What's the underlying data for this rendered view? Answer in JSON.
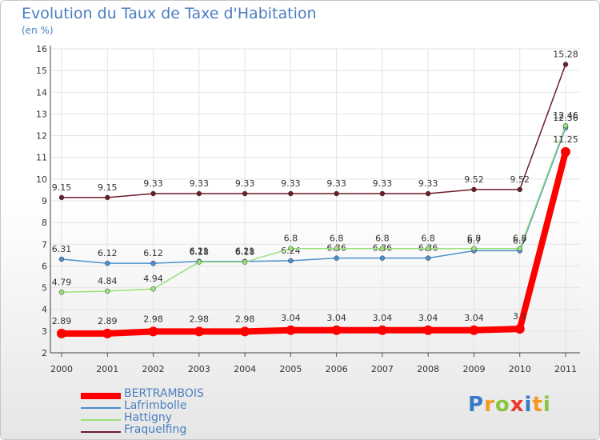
{
  "header": {
    "title": "Evolution du Taux de Taxe d'Habitation",
    "unit": "(en %)"
  },
  "logo": {
    "text": "Proxiti"
  },
  "chart_data": {
    "type": "line",
    "x": [
      "2000",
      "2001",
      "2002",
      "2003",
      "2004",
      "2005",
      "2006",
      "2007",
      "2008",
      "2009",
      "2010",
      "2011"
    ],
    "ylim": [
      2,
      16
    ],
    "yticks": [
      2,
      3,
      4,
      5,
      6,
      7,
      8,
      9,
      10,
      11,
      12,
      13,
      14,
      15,
      16
    ],
    "grid": true,
    "legend_position": "bottom-left",
    "series": [
      {
        "name": "Fraquelfing",
        "color": "#6b1d2a",
        "width": 1.5,
        "values": [
          9.15,
          9.15,
          9.33,
          9.33,
          9.33,
          9.33,
          9.33,
          9.33,
          9.33,
          9.52,
          9.52,
          15.28
        ],
        "labels": [
          "9.15",
          "9.15",
          "9.33",
          "9.33",
          "9.33",
          "9.33",
          "9.33",
          "9.33",
          "9.33",
          "9.52",
          "9.52",
          "15.28"
        ]
      },
      {
        "name": "Lafrimbolle",
        "color": "#4b8fcf",
        "width": 1.5,
        "values": [
          6.31,
          6.12,
          6.12,
          6.21,
          6.21,
          6.24,
          6.36,
          6.36,
          6.36,
          6.7,
          6.7,
          12.36
        ],
        "labels": [
          "6.31",
          "6.12",
          "6.12",
          "6.21",
          "6.21",
          "6.24",
          "6.36",
          "6.36",
          "6.36",
          "6.7",
          "6.7",
          "12.36"
        ]
      },
      {
        "name": "Hattigny",
        "color": "#9be07a",
        "width": 1.5,
        "values": [
          4.79,
          4.84,
          4.94,
          6.18,
          6.18,
          6.8,
          6.8,
          6.8,
          6.8,
          6.8,
          6.8,
          12.46
        ],
        "labels": [
          "4.79",
          "4.84",
          "4.94",
          "6.18",
          "6.18",
          "6.8",
          "6.8",
          "6.8",
          "6.8",
          "6.8",
          "6.8",
          "12.46"
        ]
      },
      {
        "name": "BERTRAMBOIS",
        "color": "#ff0000",
        "width": 8,
        "values": [
          2.89,
          2.89,
          2.98,
          2.98,
          2.98,
          3.04,
          3.04,
          3.04,
          3.04,
          3.04,
          3.1,
          11.25
        ],
        "labels": [
          "2.89",
          "2.89",
          "2.98",
          "2.98",
          "2.98",
          "3.04",
          "3.04",
          "3.04",
          "3.04",
          "3.04",
          "3.1",
          "11.25"
        ]
      }
    ],
    "legend": [
      {
        "name": "BERTRAMBOIS",
        "color": "#ff0000",
        "width": 8
      },
      {
        "name": "Lafrimbolle",
        "color": "#4b8fcf",
        "width": 2
      },
      {
        "name": "Hattigny",
        "color": "#9be07a",
        "width": 2
      },
      {
        "name": "Fraquelfing",
        "color": "#6b1d2a",
        "width": 2
      }
    ]
  }
}
